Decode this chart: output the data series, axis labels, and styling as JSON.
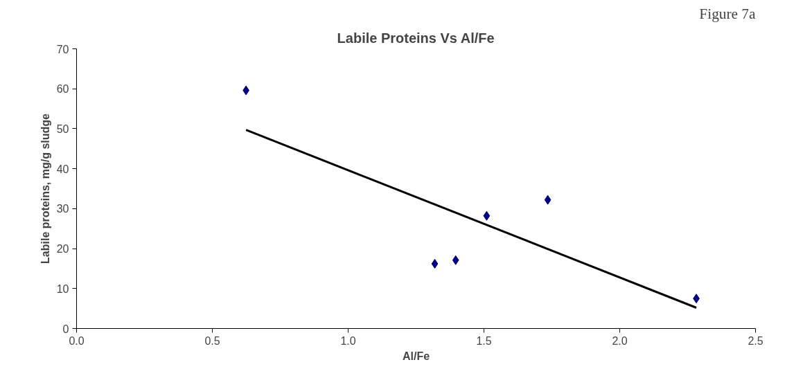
{
  "chart_data": {
    "type": "scatter",
    "title": "Labile Proteins Vs Al/Fe",
    "xlabel": "Al/Fe",
    "ylabel": "Labile proteins, mg/g sludge",
    "annotations": [
      "Figure 7a"
    ],
    "xlim": [
      0,
      2.5
    ],
    "xticks": [
      {
        "value": 0,
        "label": "0.0"
      },
      0.5,
      {
        "value": 1,
        "label": "1.0"
      },
      1.5,
      {
        "value": 2,
        "label": "2.0"
      },
      2.5
    ],
    "ylim": [
      0,
      70
    ],
    "yticks": [
      0,
      10,
      20,
      30,
      40,
      50,
      60,
      70
    ],
    "grid": false,
    "marker": "diamond",
    "series": [
      {
        "color": "#000080",
        "x": [
          0.624,
          1.319,
          1.396,
          1.51,
          1.735,
          2.282
        ],
        "values": [
          59.6,
          16.2,
          17.1,
          28.2,
          32.2,
          7.5
        ]
      },
      {
        "type": "line",
        "color": "#000000",
        "x": [
          0.624,
          2.282
        ],
        "values": [
          49.7,
          5.2
        ],
        "marker": "none",
        "line_style": "solid"
      }
    ]
  }
}
